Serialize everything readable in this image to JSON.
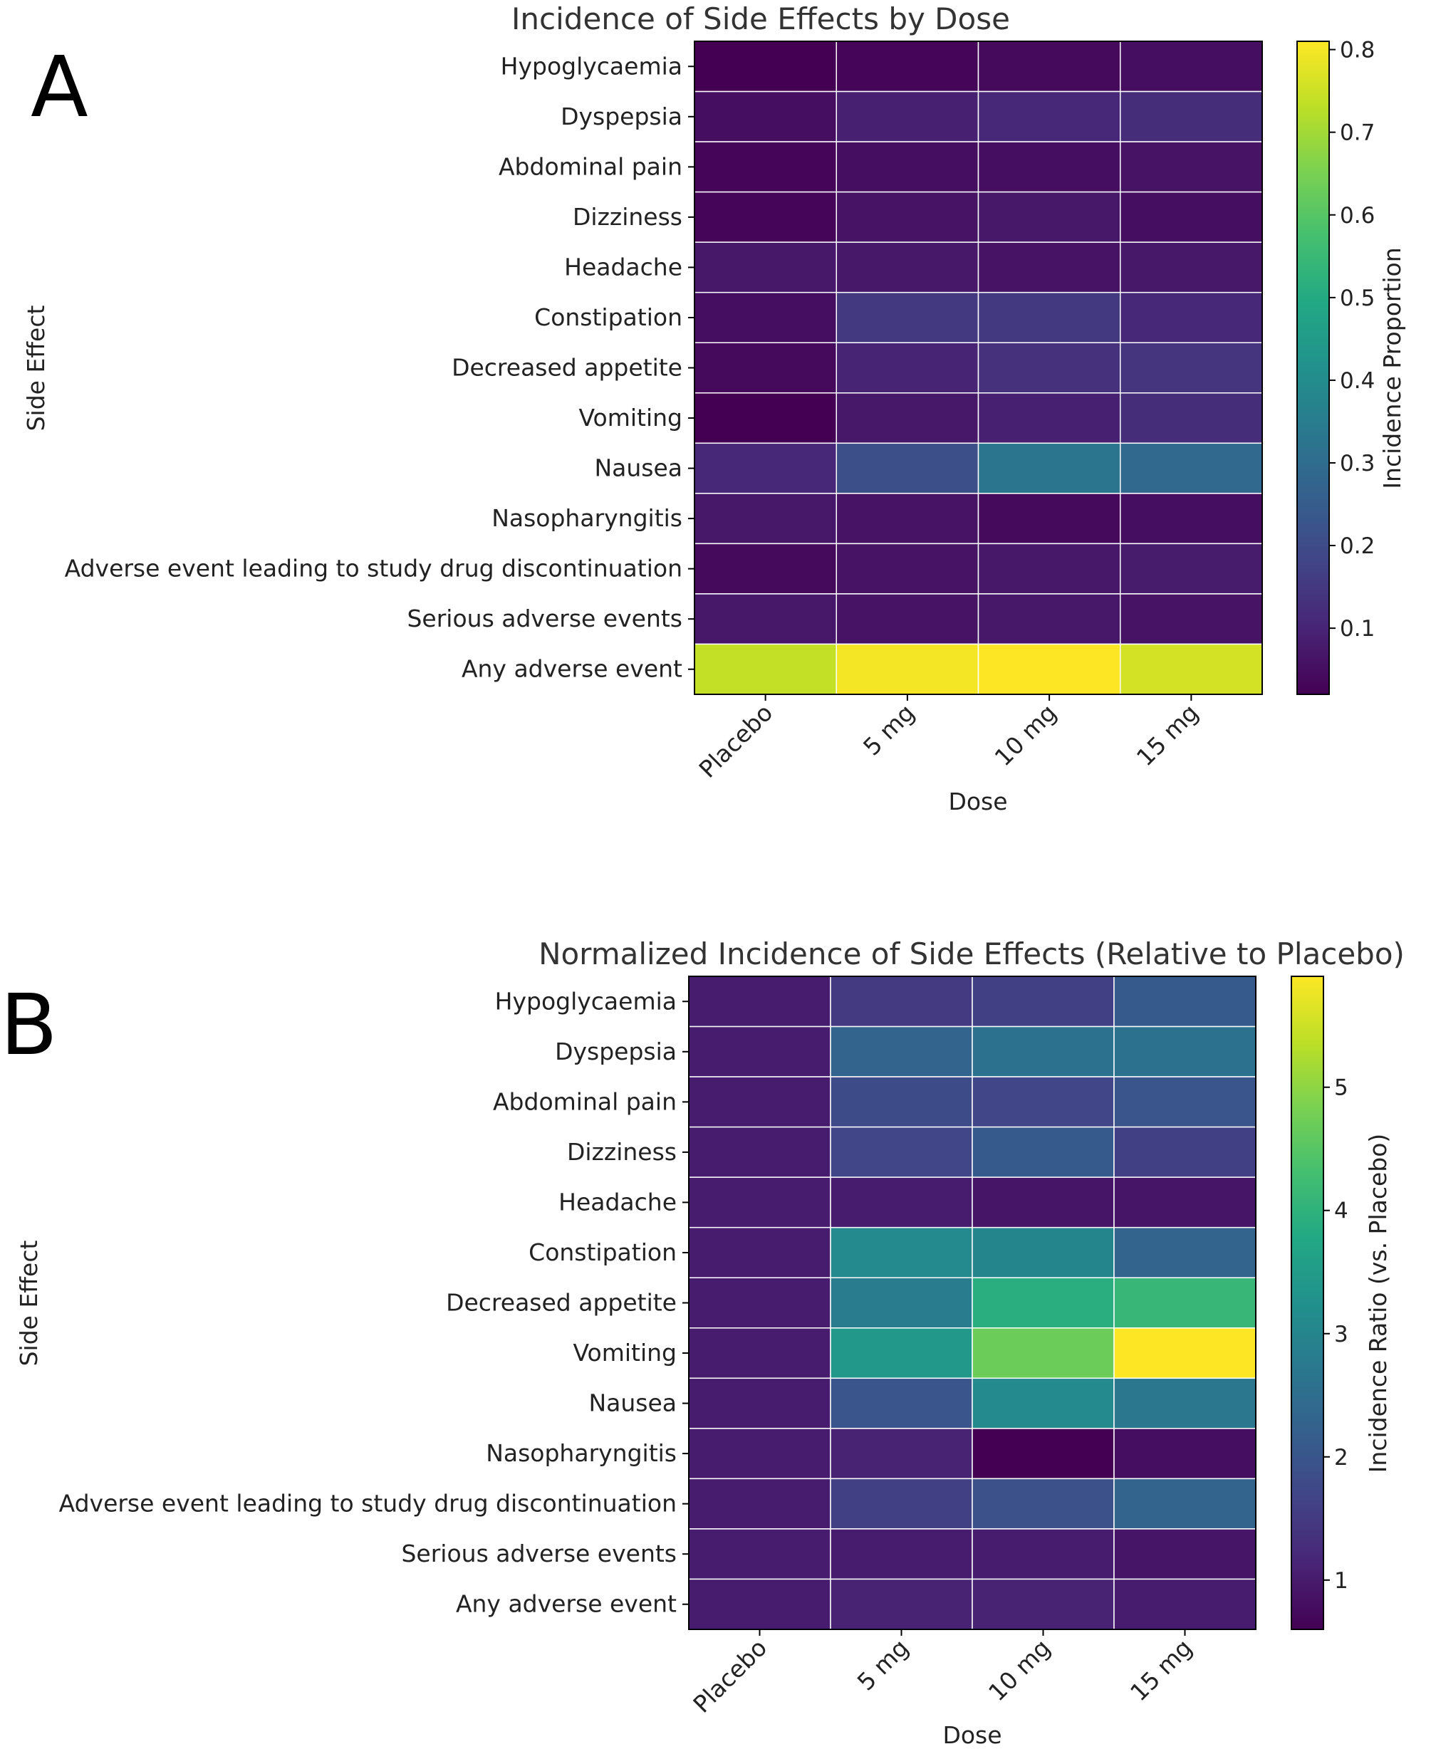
{
  "chart_data": [
    {
      "panel": "A",
      "type": "heatmap",
      "title": "Incidence of Side Effects by Dose",
      "xlabel": "Dose",
      "ylabel": "Side Effect",
      "columns": [
        "Placebo",
        "5 mg",
        "10 mg",
        "15 mg"
      ],
      "rows": [
        "Hypoglycaemia",
        "Dyspepsia",
        "Abdominal pain",
        "Dizziness",
        "Headache",
        "Constipation",
        "Decreased appetite",
        "Vomiting",
        "Nausea",
        "Nasopharyngitis",
        "Adverse event leading to study drug discontinuation",
        "Serious adverse events",
        "Any adverse event"
      ],
      "values": [
        [
          0.02,
          0.03,
          0.04,
          0.05
        ],
        [
          0.05,
          0.09,
          0.11,
          0.12
        ],
        [
          0.03,
          0.05,
          0.05,
          0.06
        ],
        [
          0.03,
          0.06,
          0.07,
          0.05
        ],
        [
          0.07,
          0.07,
          0.06,
          0.07
        ],
        [
          0.05,
          0.15,
          0.15,
          0.11
        ],
        [
          0.04,
          0.1,
          0.13,
          0.14
        ],
        [
          0.02,
          0.07,
          0.09,
          0.12
        ],
        [
          0.11,
          0.21,
          0.33,
          0.29
        ],
        [
          0.07,
          0.06,
          0.04,
          0.05
        ],
        [
          0.04,
          0.06,
          0.07,
          0.08
        ],
        [
          0.07,
          0.06,
          0.07,
          0.06
        ],
        [
          0.74,
          0.8,
          0.81,
          0.76
        ]
      ],
      "colorbar": {
        "label": "Incidence Proportion",
        "range": [
          0.02,
          0.81
        ],
        "ticks": [
          0.1,
          0.2,
          0.3,
          0.4,
          0.5,
          0.6,
          0.7,
          0.8
        ],
        "tick_labels": [
          "0.1",
          "0.2",
          "0.3",
          "0.4",
          "0.5",
          "0.6",
          "0.7",
          "0.8"
        ]
      }
    },
    {
      "panel": "B",
      "type": "heatmap",
      "title": "Normalized Incidence of Side Effects (Relative to Placebo)",
      "xlabel": "Dose",
      "ylabel": "Side Effect",
      "columns": [
        "Placebo",
        "5 mg",
        "10 mg",
        "15 mg"
      ],
      "rows": [
        "Hypoglycaemia",
        "Dyspepsia",
        "Abdominal pain",
        "Dizziness",
        "Headache",
        "Constipation",
        "Decreased appetite",
        "Vomiting",
        "Nausea",
        "Nasopharyngitis",
        "Adverse event leading to study drug discontinuation",
        "Serious adverse events",
        "Any adverse event"
      ],
      "values": [
        [
          1.0,
          1.5,
          1.6,
          2.1
        ],
        [
          1.0,
          2.3,
          2.6,
          2.6
        ],
        [
          1.0,
          1.8,
          1.7,
          2.0
        ],
        [
          1.0,
          1.7,
          2.1,
          1.6
        ],
        [
          1.0,
          1.0,
          0.9,
          0.9
        ],
        [
          1.0,
          3.1,
          3.0,
          2.3
        ],
        [
          1.0,
          2.8,
          3.9,
          4.1
        ],
        [
          1.0,
          3.4,
          4.7,
          5.9
        ],
        [
          1.0,
          2.0,
          3.1,
          2.7
        ],
        [
          1.0,
          1.1,
          0.6,
          0.8
        ],
        [
          1.0,
          1.6,
          1.9,
          2.3
        ],
        [
          1.0,
          1.0,
          1.0,
          0.9
        ],
        [
          1.0,
          1.1,
          1.1,
          1.0
        ]
      ],
      "colorbar": {
        "label": "Incidence Ratio (vs. Placebo)",
        "range": [
          0.6,
          5.9
        ],
        "ticks": [
          1,
          2,
          3,
          4,
          5
        ],
        "tick_labels": [
          "1",
          "2",
          "3",
          "4",
          "5"
        ]
      }
    }
  ]
}
